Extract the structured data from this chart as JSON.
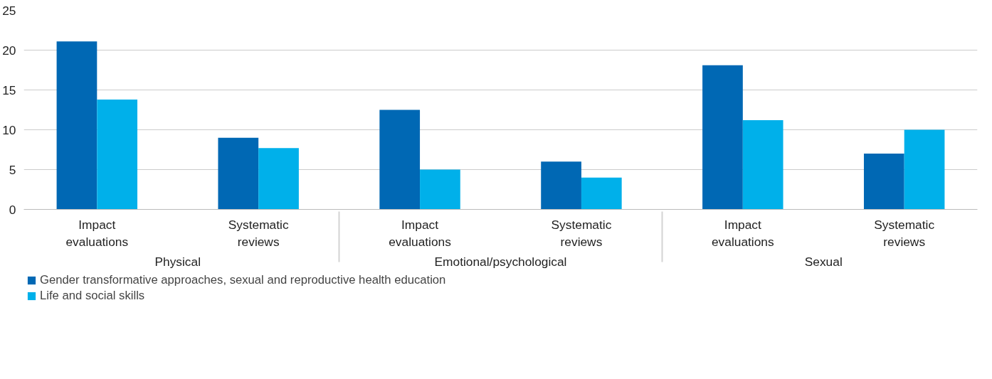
{
  "chart_data": {
    "type": "bar",
    "categories": [
      "Impact evaluations",
      "Systematic reviews",
      "Impact evaluations",
      "Systematic reviews",
      "Impact evaluations",
      "Systematic reviews"
    ],
    "annotations": [
      "Physical",
      "Emotional/psychological",
      "Sexual"
    ],
    "series": [
      {
        "name": "Gender transformative approaches, sexual and reproductive health education",
        "color": "#0068b4",
        "values": [
          21.1,
          9,
          12.5,
          6,
          18.1,
          7
        ]
      },
      {
        "name": "Life and social skills",
        "color": "#00b0ea",
        "values": [
          13.8,
          7.7,
          5,
          4,
          11.2,
          10
        ]
      }
    ],
    "ylim": [
      0,
      25
    ],
    "yticks": [
      0,
      5,
      10,
      15,
      20,
      25
    ],
    "grid": "y",
    "legend": "bottom left"
  }
}
